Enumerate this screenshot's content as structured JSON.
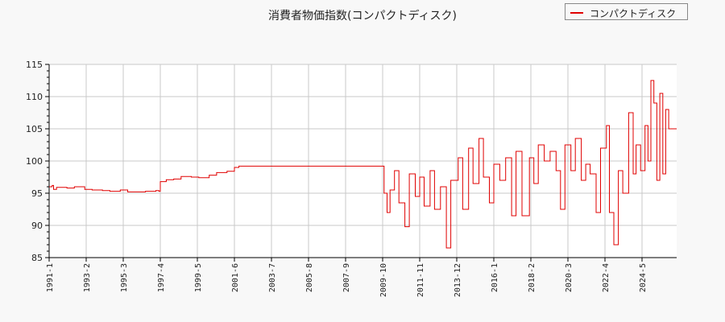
{
  "chart_data": {
    "type": "line",
    "title": "消費者物価指数(コンパクトディスク)",
    "xlabel": "",
    "ylabel": "",
    "ylim": [
      85,
      115
    ],
    "yticks": [
      85,
      90,
      95,
      100,
      105,
      110,
      115
    ],
    "xticks": [
      "1991-1",
      "1993-2",
      "1995-3",
      "1997-4",
      "1999-5",
      "2001-6",
      "2003-7",
      "2005-8",
      "2007-9",
      "2009-10",
      "2011-11",
      "2013-12",
      "2016-1",
      "2018-2",
      "2020-3",
      "2022-4",
      "2024-5"
    ],
    "grid": true,
    "legend_position": "top-right",
    "series": [
      {
        "name": "コンパクトディスク",
        "color": "#e00000",
        "points": [
          [
            "1991-1",
            96.0
          ],
          [
            "1991-3",
            96.2
          ],
          [
            "1991-4",
            95.6
          ],
          [
            "1991-6",
            95.9
          ],
          [
            "1992-1",
            95.8
          ],
          [
            "1992-6",
            96.0
          ],
          [
            "1993-1",
            95.6
          ],
          [
            "1993-6",
            95.5
          ],
          [
            "1994-1",
            95.4
          ],
          [
            "1994-6",
            95.3
          ],
          [
            "1995-1",
            95.5
          ],
          [
            "1995-6",
            95.2
          ],
          [
            "1996-1",
            95.2
          ],
          [
            "1996-6",
            95.3
          ],
          [
            "1997-1",
            95.4
          ],
          [
            "1997-3",
            95.3
          ],
          [
            "1997-4",
            96.8
          ],
          [
            "1997-8",
            97.1
          ],
          [
            "1998-1",
            97.2
          ],
          [
            "1998-6",
            97.6
          ],
          [
            "1999-1",
            97.5
          ],
          [
            "1999-6",
            97.4
          ],
          [
            "2000-1",
            97.8
          ],
          [
            "2000-6",
            98.2
          ],
          [
            "2001-1",
            98.4
          ],
          [
            "2001-6",
            99.0
          ],
          [
            "2001-9",
            99.2
          ],
          [
            "2009-10",
            99.2
          ],
          [
            "2009-11",
            95.0
          ],
          [
            "2010-1",
            92.0
          ],
          [
            "2010-3",
            95.5
          ],
          [
            "2010-6",
            98.5
          ],
          [
            "2010-9",
            93.5
          ],
          [
            "2011-1",
            89.8
          ],
          [
            "2011-4",
            98.0
          ],
          [
            "2011-8",
            94.5
          ],
          [
            "2011-11",
            97.5
          ],
          [
            "2012-2",
            93.0
          ],
          [
            "2012-6",
            98.5
          ],
          [
            "2012-9",
            92.5
          ],
          [
            "2013-1",
            96.0
          ],
          [
            "2013-5",
            86.5
          ],
          [
            "2013-8",
            97.0
          ],
          [
            "2014-1",
            100.5
          ],
          [
            "2014-4",
            92.5
          ],
          [
            "2014-8",
            102.0
          ],
          [
            "2014-11",
            96.5
          ],
          [
            "2015-3",
            103.5
          ],
          [
            "2015-6",
            97.5
          ],
          [
            "2015-10",
            93.5
          ],
          [
            "2016-1",
            99.5
          ],
          [
            "2016-5",
            97.0
          ],
          [
            "2016-9",
            100.5
          ],
          [
            "2017-1",
            91.5
          ],
          [
            "2017-4",
            101.5
          ],
          [
            "2017-8",
            91.5
          ],
          [
            "2018-1",
            100.5
          ],
          [
            "2018-4",
            96.5
          ],
          [
            "2018-7",
            102.5
          ],
          [
            "2018-11",
            100.0
          ],
          [
            "2019-3",
            101.5
          ],
          [
            "2019-7",
            98.5
          ],
          [
            "2019-10",
            92.5
          ],
          [
            "2020-1",
            102.5
          ],
          [
            "2020-5",
            98.5
          ],
          [
            "2020-8",
            103.5
          ],
          [
            "2020-12",
            97.0
          ],
          [
            "2021-3",
            99.5
          ],
          [
            "2021-6",
            98.0
          ],
          [
            "2021-10",
            92.0
          ],
          [
            "2022-1",
            102.0
          ],
          [
            "2022-5",
            105.5
          ],
          [
            "2022-7",
            92.0
          ],
          [
            "2022-10",
            87.0
          ],
          [
            "2023-1",
            98.5
          ],
          [
            "2023-4",
            95.0
          ],
          [
            "2023-8",
            107.5
          ],
          [
            "2023-11",
            98.0
          ],
          [
            "2024-1",
            102.5
          ],
          [
            "2024-4",
            98.5
          ],
          [
            "2024-7",
            105.5
          ],
          [
            "2024-9",
            100.0
          ],
          [
            "2024-11",
            112.5
          ],
          [
            "2025-1",
            109.0
          ],
          [
            "2025-3",
            97.0
          ],
          [
            "2025-5",
            110.5
          ],
          [
            "2025-7",
            98.0
          ],
          [
            "2025-9",
            108.0
          ],
          [
            "2025-11",
            105.0
          ]
        ]
      }
    ]
  }
}
